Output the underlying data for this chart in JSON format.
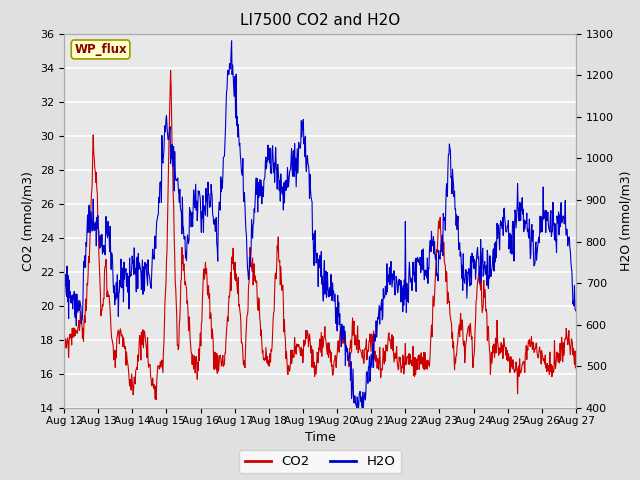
{
  "title": "LI7500 CO2 and H2O",
  "xlabel": "Time",
  "ylabel_left": "CO2 (mmol/m3)",
  "ylabel_right": "H2O (mmol/m3)",
  "ylim_left": [
    14,
    36
  ],
  "ylim_right": [
    400,
    1300
  ],
  "yticks_left": [
    14,
    16,
    18,
    20,
    22,
    24,
    26,
    28,
    30,
    32,
    34,
    36
  ],
  "yticks_right": [
    400,
    500,
    600,
    700,
    800,
    900,
    1000,
    1100,
    1200,
    1300
  ],
  "xtick_labels": [
    "Aug 12",
    "Aug 13",
    "Aug 14",
    "Aug 15",
    "Aug 16",
    "Aug 17",
    "Aug 18",
    "Aug 19",
    "Aug 20",
    "Aug 21",
    "Aug 22",
    "Aug 23",
    "Aug 24",
    "Aug 25",
    "Aug 26",
    "Aug 27"
  ],
  "co2_color": "#cc0000",
  "h2o_color": "#0000cc",
  "legend_label_co2": "CO2",
  "legend_label_h2o": "H2O",
  "site_label": "WP_flux",
  "background_color": "#e0e0e0",
  "plot_bg_color": "#e8e8e8",
  "grid_color": "#ffffff",
  "n_points": 1000
}
